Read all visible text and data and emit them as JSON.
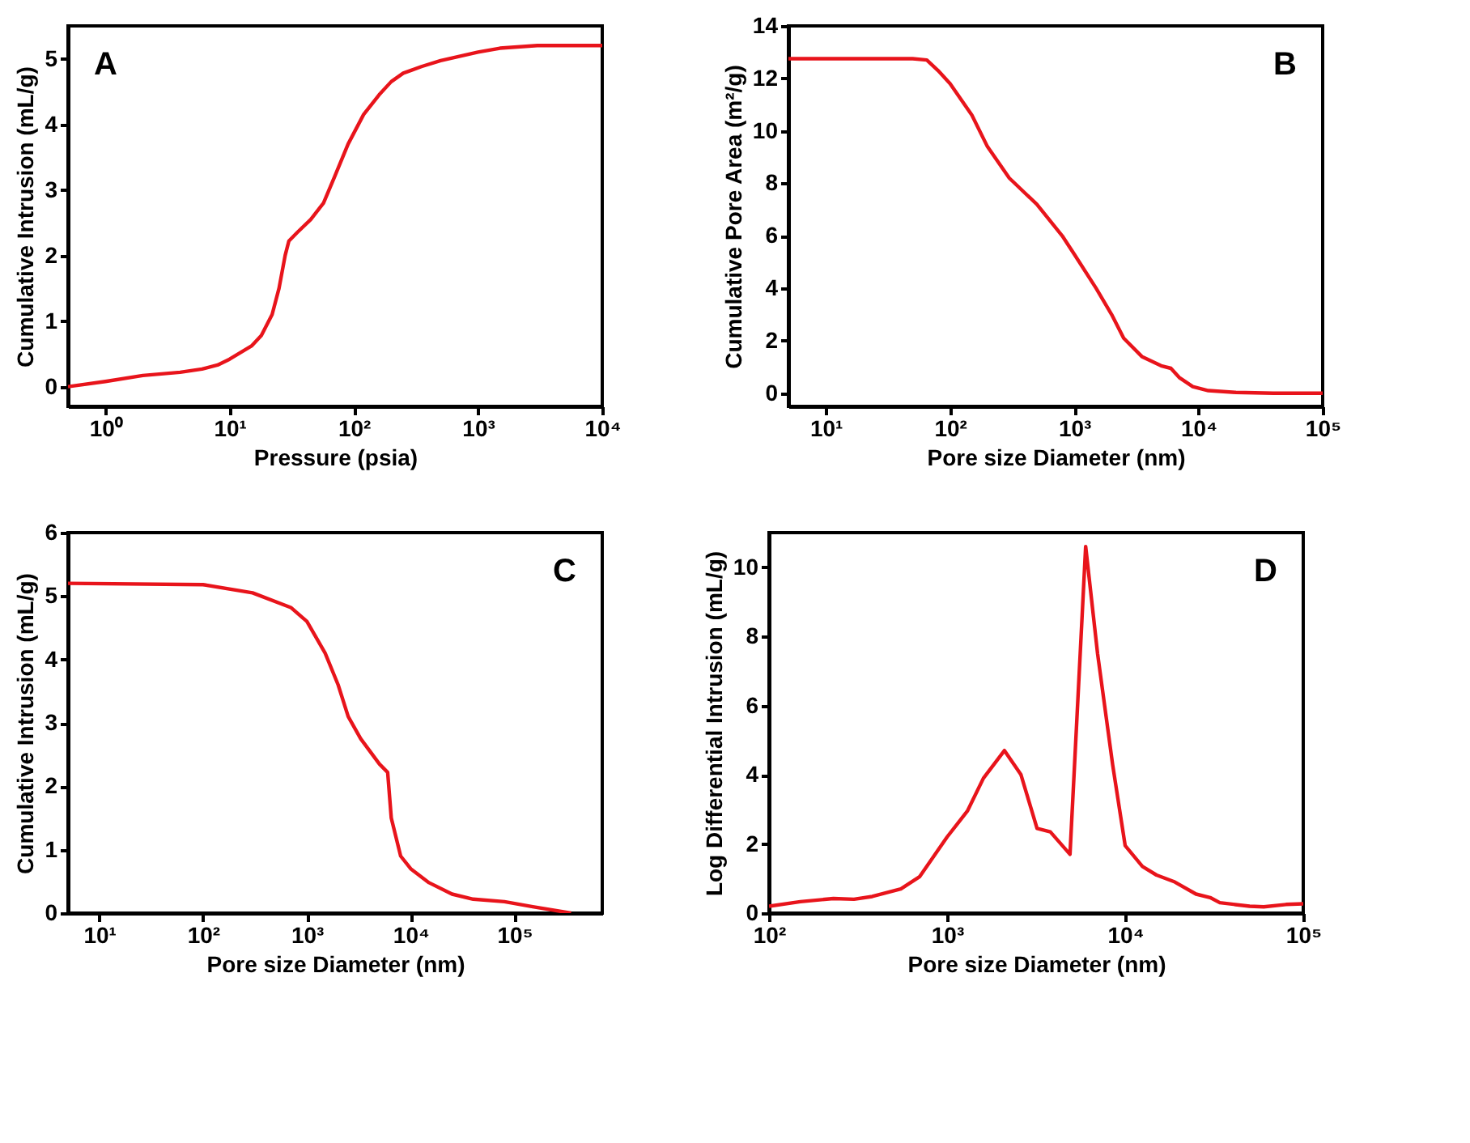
{
  "chart_data": [
    {
      "type": "line",
      "annotations": [
        "A"
      ],
      "xlabel": "Pressure (psia)",
      "ylabel": "Cumulative Intrusion (mL/g)",
      "log": "x",
      "xlim": [
        0.5,
        10000
      ],
      "xticks": [
        {
          "value": 1,
          "label": "10⁰"
        },
        {
          "value": 10,
          "label": "10¹"
        },
        {
          "value": 100,
          "label": "10²"
        },
        {
          "value": 1000,
          "label": "10³"
        },
        {
          "value": 10000,
          "label": "10⁴"
        }
      ],
      "ylim": [
        -0.3,
        5.5
      ],
      "yticks": [
        0,
        1,
        2,
        3,
        4,
        5
      ],
      "grid": false,
      "series": [
        {
          "color": "#e8141b",
          "x": [
            0.5,
            1,
            2,
            4,
            6,
            8,
            10,
            15,
            18,
            22,
            25,
            28,
            30,
            35,
            45,
            57,
            70,
            90,
            120,
            160,
            200,
            250,
            350,
            500,
            1000,
            1500,
            3000,
            10000
          ],
          "values": [
            0,
            0.08,
            0.17,
            0.22,
            0.27,
            0.33,
            0.42,
            0.62,
            0.78,
            1.1,
            1.5,
            2.0,
            2.22,
            2.35,
            2.55,
            2.8,
            3.2,
            3.7,
            4.15,
            4.45,
            4.65,
            4.78,
            4.88,
            4.97,
            5.1,
            5.16,
            5.2,
            5.2
          ]
        }
      ]
    },
    {
      "type": "line",
      "annotations": [
        "B"
      ],
      "xlabel": "Pore size Diameter (nm)",
      "ylabel": "Cumulative Pore Area (m²/g)",
      "log": "x",
      "xlim": [
        5,
        100000
      ],
      "xticks": [
        {
          "value": 10,
          "label": "10¹"
        },
        {
          "value": 100,
          "label": "10²"
        },
        {
          "value": 1000,
          "label": "10³"
        },
        {
          "value": 10000,
          "label": "10⁴"
        },
        {
          "value": 100000,
          "label": "10⁵"
        }
      ],
      "ylim": [
        -0.5,
        14
      ],
      "yticks": [
        0,
        2,
        4,
        6,
        8,
        10,
        12,
        14
      ],
      "grid": false,
      "series": [
        {
          "color": "#e8141b",
          "x": [
            5,
            50,
            65,
            80,
            100,
            150,
            200,
            300,
            500,
            800,
            1000,
            1500,
            2000,
            2500,
            3500,
            5000,
            6000,
            7000,
            9000,
            12000,
            20000,
            40000,
            100000
          ],
          "values": [
            12.75,
            12.75,
            12.7,
            12.3,
            11.8,
            10.6,
            9.4,
            8.2,
            7.2,
            6.0,
            5.3,
            4.0,
            3.0,
            2.1,
            1.4,
            1.05,
            0.95,
            0.6,
            0.25,
            0.1,
            0.03,
            0.0,
            0.0
          ]
        }
      ]
    },
    {
      "type": "line",
      "annotations": [
        "C"
      ],
      "xlabel": "Pore size Diameter (nm)",
      "ylabel": "Cumulative Intrusion (mL/g)",
      "log": "x",
      "xlim": [
        5,
        700000
      ],
      "xticks": [
        {
          "value": 10,
          "label": "10¹"
        },
        {
          "value": 100,
          "label": "10²"
        },
        {
          "value": 1000,
          "label": "10³"
        },
        {
          "value": 10000,
          "label": "10⁴"
        },
        {
          "value": 100000,
          "label": "10⁵"
        }
      ],
      "ylim": [
        0,
        6
      ],
      "yticks": [
        0,
        1,
        2,
        3,
        4,
        5,
        6
      ],
      "grid": false,
      "series": [
        {
          "color": "#e8141b",
          "x": [
            5,
            100,
            300,
            700,
            1000,
            1500,
            2000,
            2500,
            3300,
            5000,
            6000,
            6500,
            8000,
            10000,
            15000,
            25000,
            40000,
            80000,
            150000,
            350000
          ],
          "values": [
            5.2,
            5.18,
            5.05,
            4.82,
            4.6,
            4.1,
            3.6,
            3.1,
            2.75,
            2.35,
            2.22,
            1.5,
            0.9,
            0.7,
            0.48,
            0.3,
            0.22,
            0.18,
            0.1,
            0.0
          ]
        }
      ]
    },
    {
      "type": "line",
      "annotations": [
        "D"
      ],
      "xlabel": "Pore size Diameter (nm)",
      "ylabel": "Log Differential Intrusion (mL/g)",
      "log": "x",
      "xlim": [
        100,
        100000
      ],
      "xticks": [
        {
          "value": 100,
          "label": "10²"
        },
        {
          "value": 1000,
          "label": "10³"
        },
        {
          "value": 10000,
          "label": "10⁴"
        },
        {
          "value": 100000,
          "label": "10⁵"
        }
      ],
      "ylim": [
        0,
        11
      ],
      "yticks": [
        0,
        2,
        4,
        6,
        8,
        10
      ],
      "grid": false,
      "series": [
        {
          "color": "#e8141b",
          "x": [
            100,
            150,
            230,
            300,
            380,
            550,
            700,
            1000,
            1300,
            1600,
            2100,
            2600,
            3200,
            3800,
            4900,
            6000,
            7000,
            8500,
            10000,
            12500,
            15000,
            19000,
            25000,
            30000,
            34000,
            50000,
            60000,
            80000,
            100000
          ],
          "values": [
            0.2,
            0.33,
            0.42,
            0.4,
            0.48,
            0.7,
            1.05,
            2.2,
            2.95,
            3.9,
            4.7,
            4.0,
            2.45,
            2.35,
            1.7,
            10.6,
            7.5,
            4.3,
            1.95,
            1.35,
            1.1,
            0.9,
            0.55,
            0.45,
            0.3,
            0.2,
            0.18,
            0.25,
            0.27
          ]
        }
      ]
    }
  ]
}
